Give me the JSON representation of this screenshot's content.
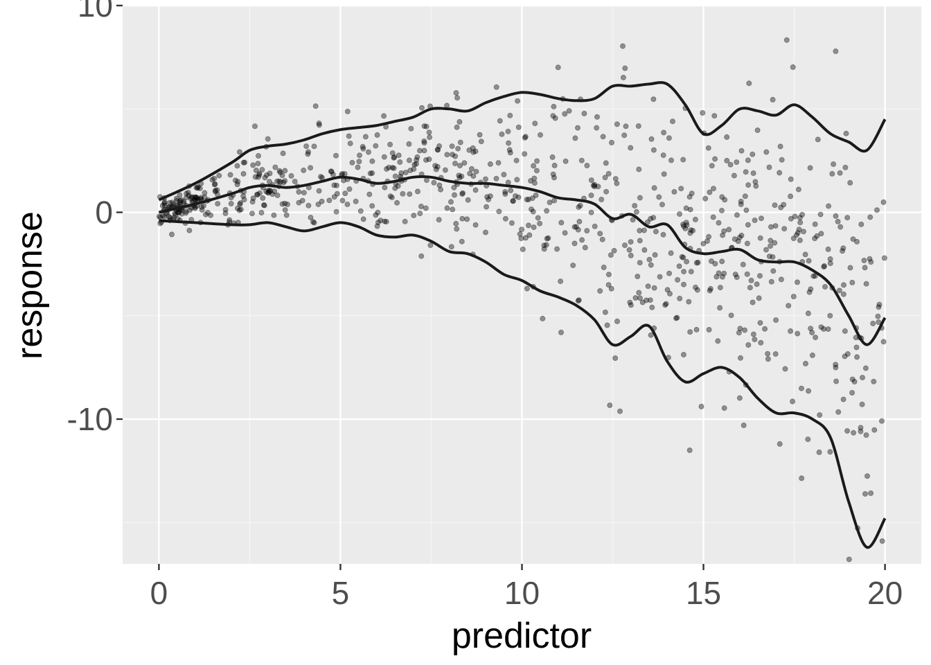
{
  "chart_data": {
    "type": "scatter",
    "title": "",
    "xlabel": "predictor",
    "ylabel": "response",
    "xlim": [
      -1,
      21
    ],
    "ylim": [
      -17,
      10
    ],
    "x_ticks": [
      0,
      5,
      10,
      15,
      20
    ],
    "x_tick_labels": [
      "0",
      "5",
      "10",
      "15",
      "20"
    ],
    "y_ticks": [
      -10,
      0,
      10
    ],
    "y_tick_labels": [
      "-10",
      "0",
      "10"
    ],
    "grid": true,
    "legend": "none",
    "colors": {
      "panel_background": "#ebebeb",
      "grid_major": "#ffffff",
      "grid_minor": "#f5f5f5",
      "points": "#000000",
      "lines": "#1a1a1a",
      "tick_text": "#4d4d4d"
    },
    "point_alpha": 0.4,
    "scatter_description": "approximately 1000 noisy observations whose spread widens as the predictor increases",
    "series": [
      {
        "role": "upper band",
        "x": [
          0,
          1,
          2,
          2.5,
          3,
          3.5,
          4,
          4.5,
          5,
          5.5,
          6,
          6.5,
          7,
          7.5,
          8,
          8.5,
          9,
          9.5,
          10,
          10.5,
          11,
          11.5,
          12,
          12.5,
          13,
          13.5,
          14,
          14.5,
          15,
          15.5,
          16,
          16.5,
          17,
          17.5,
          18,
          18.5,
          19,
          19.5,
          20
        ],
        "y": [
          0.6,
          1.4,
          2.4,
          3.0,
          3.2,
          3.3,
          3.5,
          3.8,
          4.0,
          4.1,
          4.2,
          4.4,
          4.6,
          5.0,
          5.0,
          4.9,
          5.3,
          5.6,
          5.8,
          5.7,
          5.5,
          5.4,
          5.5,
          6.1,
          6.1,
          6.2,
          6.2,
          5.2,
          3.8,
          4.2,
          5.0,
          4.9,
          4.7,
          5.2,
          4.6,
          3.8,
          3.4,
          3.0,
          4.5
        ]
      },
      {
        "role": "center",
        "x": [
          0,
          1,
          2,
          2.5,
          3,
          3.5,
          4,
          4.5,
          5,
          5.5,
          6,
          6.5,
          7,
          7.5,
          8,
          8.5,
          9,
          9.5,
          10,
          10.5,
          11,
          11.5,
          12,
          12.5,
          13,
          13.5,
          14,
          14.5,
          15,
          15.5,
          16,
          16.5,
          17,
          17.5,
          18,
          18.5,
          19,
          19.5,
          20
        ],
        "y": [
          0.0,
          0.4,
          0.9,
          1.2,
          1.3,
          1.2,
          1.3,
          1.5,
          1.7,
          1.6,
          1.4,
          1.5,
          1.7,
          1.7,
          1.5,
          1.4,
          1.4,
          1.3,
          1.2,
          1.0,
          0.7,
          0.6,
          0.4,
          -0.3,
          -0.1,
          -0.7,
          -0.6,
          -1.7,
          -2.0,
          -1.9,
          -1.8,
          -2.3,
          -2.4,
          -2.4,
          -2.8,
          -3.5,
          -5.0,
          -6.4,
          -5.1
        ]
      },
      {
        "role": "lower band",
        "x": [
          0,
          1,
          2,
          2.5,
          3,
          3.5,
          4,
          4.5,
          5,
          5.5,
          6,
          6.5,
          7,
          7.5,
          8,
          8.5,
          9,
          9.5,
          10,
          10.5,
          11,
          11.5,
          12,
          12.5,
          13,
          13.5,
          14,
          14.5,
          15,
          15.5,
          16,
          16.5,
          17,
          17.5,
          18,
          18.5,
          19,
          19.5,
          20
        ],
        "y": [
          -0.4,
          -0.5,
          -0.6,
          -0.6,
          -0.5,
          -0.7,
          -0.9,
          -0.7,
          -0.5,
          -0.7,
          -1.1,
          -1.2,
          -1.1,
          -1.4,
          -1.9,
          -2.0,
          -2.4,
          -3.0,
          -3.3,
          -3.8,
          -4.1,
          -4.5,
          -5.2,
          -6.4,
          -6.0,
          -5.5,
          -7.2,
          -8.2,
          -7.8,
          -7.5,
          -8.0,
          -9.0,
          -9.7,
          -9.7,
          -10.0,
          -10.9,
          -14.0,
          -16.2,
          -14.8
        ]
      }
    ]
  }
}
